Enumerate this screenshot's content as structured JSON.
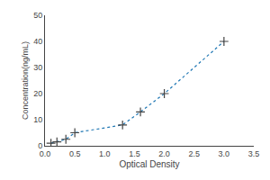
{
  "chart_data": {
    "type": "line",
    "x": [
      0.1,
      0.2,
      0.35,
      0.5,
      1.3,
      1.6,
      2.0,
      3.0
    ],
    "values": [
      1.0,
      1.5,
      2.5,
      5.0,
      8.0,
      13.0,
      20.0,
      40.0
    ],
    "xlabel": "Optical Density",
    "ylabel": "Concentration(ng/mL)",
    "xlim": [
      0,
      3.5
    ],
    "ylim": [
      0,
      50
    ],
    "xticks": [
      {
        "value": 0,
        "label": "0.0"
      },
      {
        "value": 0.5,
        "label": "0.5"
      },
      {
        "value": 1,
        "label": "1.0"
      },
      {
        "value": 1.5,
        "label": "1.5"
      },
      {
        "value": 2,
        "label": "2.0"
      },
      {
        "value": 2.5,
        "label": "2.5"
      },
      {
        "value": 3,
        "label": "3.0"
      },
      {
        "value": 3.5,
        "label": "3.5"
      }
    ],
    "yticks": [
      0,
      10,
      20,
      30,
      40,
      50
    ],
    "grid": false,
    "marker": "plus",
    "line_style": "dotted"
  }
}
